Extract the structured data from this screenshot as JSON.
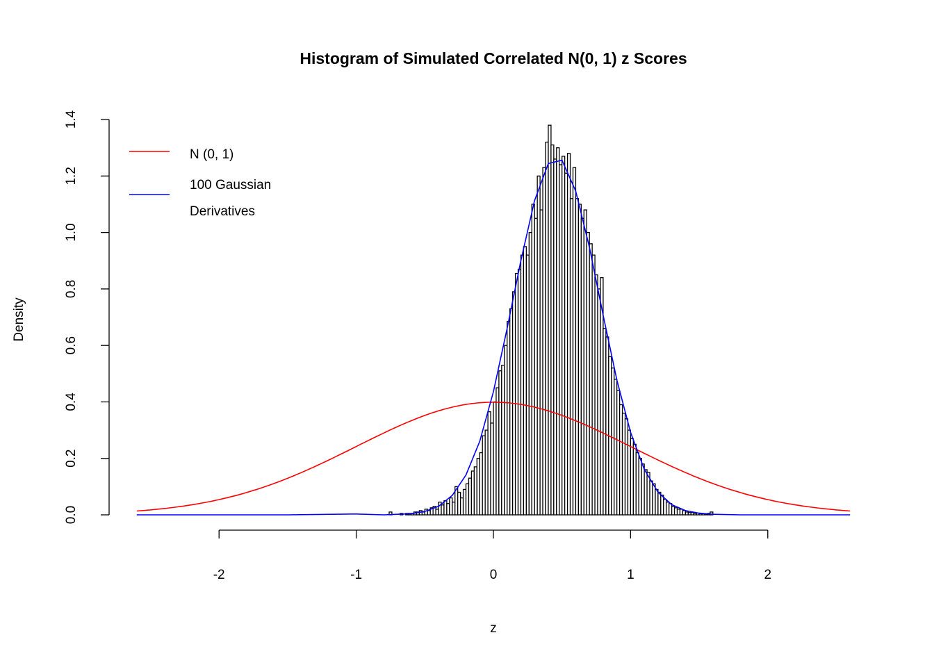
{
  "chart_data": {
    "type": "bar",
    "title": "Histogram of Simulated Correlated N(0, 1) z Scores",
    "xlabel": "z",
    "ylabel": "Density",
    "xlim": [
      -2.6,
      2.6
    ],
    "ylim": [
      0,
      1.4
    ],
    "xticks": [
      -2,
      -1,
      0,
      1,
      2
    ],
    "yticks": [
      0.0,
      0.2,
      0.4,
      0.6,
      0.8,
      1.0,
      1.2,
      1.4
    ],
    "xtick_labels": [
      "-2",
      "-1",
      "0",
      "1",
      "2"
    ],
    "ytick_labels": [
      "0.0",
      "0.2",
      "0.4",
      "0.6",
      "0.8",
      "1.0",
      "1.2",
      "1.4"
    ],
    "grid": false,
    "legend_placement": "top-left",
    "histogram": {
      "bin_start": -0.76,
      "bin_width": 0.02,
      "densities": [
        0.01,
        0,
        0,
        0,
        0.005,
        0,
        0.005,
        0.005,
        0.005,
        0.01,
        0.01,
        0.015,
        0.01,
        0.02,
        0.015,
        0.025,
        0.03,
        0.02,
        0.045,
        0.035,
        0.05,
        0.04,
        0.06,
        0.045,
        0.1,
        0.08,
        0.06,
        0.09,
        0.11,
        0.13,
        0.155,
        0.17,
        0.2,
        0.22,
        0.28,
        0.3,
        0.365,
        0.325,
        0.4,
        0.45,
        0.51,
        0.53,
        0.6,
        0.685,
        0.73,
        0.79,
        0.855,
        0.87,
        0.92,
        0.95,
        0.92,
        1.0,
        1.1,
        1.05,
        1.2,
        1.08,
        1.23,
        1.32,
        1.38,
        1.31,
        1.26,
        1.3,
        1.24,
        1.27,
        1.21,
        1.28,
        1.12,
        1.23,
        1.12,
        1.1,
        1.05,
        1.08,
        1.0,
        0.96,
        0.92,
        0.85,
        0.8,
        0.84,
        0.66,
        0.63,
        0.56,
        0.52,
        0.48,
        0.44,
        0.39,
        0.36,
        0.34,
        0.3,
        0.27,
        0.25,
        0.22,
        0.2,
        0.18,
        0.16,
        0.15,
        0.12,
        0.11,
        0.09,
        0.08,
        0.07,
        0.055,
        0.045,
        0.04,
        0.03,
        0.025,
        0.02,
        0.02,
        0.015,
        0.01,
        0.008,
        0.008,
        0.005,
        0.006,
        0.004,
        0.004,
        0.003,
        0.005,
        0.01
      ],
      "fill": "#ffffff",
      "stroke": "#000000"
    },
    "series": [
      {
        "name": "N (0, 1)",
        "color": "#ff0000",
        "function": "standard normal density",
        "x_range": [
          -2.6,
          2.6
        ]
      },
      {
        "name": "100 Gaussian Derivatives",
        "color": "#0000ff",
        "x": [
          -2.6,
          -2.0,
          -1.5,
          -1.0,
          -0.8,
          -0.7,
          -0.6,
          -0.5,
          -0.4,
          -0.3,
          -0.2,
          -0.1,
          0.0,
          0.1,
          0.2,
          0.3,
          0.4,
          0.5,
          0.6,
          0.7,
          0.8,
          0.9,
          1.0,
          1.1,
          1.2,
          1.3,
          1.4,
          1.5,
          1.6,
          1.8,
          2.0,
          2.6
        ],
        "y": [
          0,
          0,
          0,
          0.003,
          0,
          0.002,
          0.004,
          0.012,
          0.03,
          0.069,
          0.141,
          0.26,
          0.436,
          0.66,
          0.9,
          1.113,
          1.244,
          1.256,
          1.147,
          0.947,
          0.707,
          0.477,
          0.292,
          0.161,
          0.08,
          0.036,
          0.015,
          0.006,
          0.002,
          0,
          0,
          0
        ]
      }
    ],
    "legend": {
      "entries": [
        {
          "label_lines": [
            "N (0, 1)"
          ],
          "color": "#ff0000"
        },
        {
          "label_lines": [
            "100 Gaussian",
            "Derivatives"
          ],
          "color": "#0000ff"
        }
      ]
    }
  }
}
